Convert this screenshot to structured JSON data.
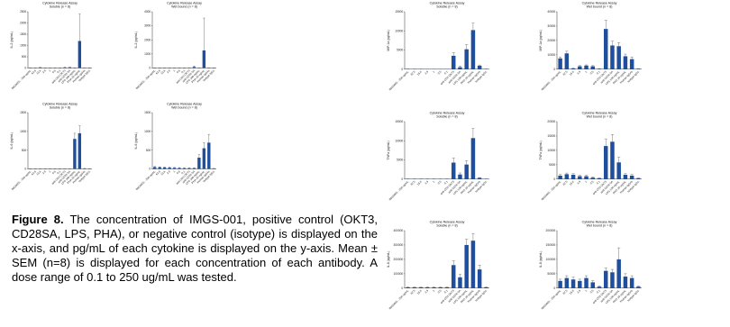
{
  "caption": {
    "label": "Figure 8.",
    "text": "The concentration of IMGS-001, positive control (OKT3, CD28SA, LPS, PHA), or negative control (isotype) is displayed on the x-axis, and pg/mL of each cytokine is displayed on the y-axis. Mean ± SEM (n=8) is displayed for each concentration of each antibody. A dose range of 0.1 to 250 ug/mL was tested."
  },
  "categories": [
    "IMGS001 - 250 ug/mL",
    "62.5",
    "15.6",
    "3.9",
    "1",
    "0.5",
    "0.1",
    "anti-CD3 OKT3",
    "anti-CD28 SA",
    "LPS 100 ng/mL",
    "PHA 10 ug/mL",
    "Human IgG4s",
    "Isotype IgG1"
  ],
  "colors": {
    "bar": "#1f4f9c",
    "axis": "#333333"
  },
  "chart_data": [
    {
      "type": "bar",
      "title": "Cytokine Release Assay",
      "subtitle": "Soluble (n = 8)",
      "ylabel": "IL-2 (pg/mL)",
      "ylim": [
        0,
        2500
      ],
      "yticks": [
        "0",
        "500",
        "1000",
        "1500",
        "2000",
        "2500"
      ],
      "values": [
        10,
        5,
        25,
        5,
        5,
        5,
        5,
        25,
        30,
        10,
        1200,
        8,
        5
      ],
      "errors": [
        5,
        5,
        10,
        5,
        5,
        5,
        5,
        15,
        15,
        5,
        1200,
        5,
        5
      ]
    },
    {
      "type": "bar",
      "title": "Cytokine Release Assay",
      "subtitle": "Wet bound (n = 8)",
      "ylabel": "IL-2 (pg/mL)",
      "ylim": [
        0,
        4000
      ],
      "yticks": [
        "0",
        "1000",
        "2000",
        "3000",
        "4000"
      ],
      "values": [
        10,
        5,
        5,
        5,
        5,
        5,
        5,
        10,
        80,
        10,
        1250,
        10,
        5
      ],
      "errors": [
        5,
        5,
        5,
        5,
        5,
        5,
        5,
        10,
        60,
        10,
        2300,
        5,
        5
      ]
    },
    {
      "type": "bar",
      "title": "Cytokine Release Assay",
      "subtitle": "Soluble (n = 8)",
      "ylabel": "IL-6 (pg/mL)",
      "ylim": [
        0,
        1500
      ],
      "yticks": [
        "0",
        "500",
        "1000",
        "1500"
      ],
      "values": [
        5,
        5,
        5,
        5,
        5,
        5,
        5,
        5,
        5,
        800,
        950,
        10,
        5
      ],
      "errors": [
        3,
        3,
        3,
        3,
        3,
        3,
        3,
        3,
        3,
        150,
        200,
        5,
        3
      ]
    },
    {
      "type": "bar",
      "title": "Cytokine Release Assay",
      "subtitle": "Wet bound (n = 8)",
      "ylabel": "IL-6 (pg/mL)",
      "ylim": [
        0,
        1500
      ],
      "yticks": [
        "0",
        "500",
        "1000",
        "1500"
      ],
      "values": [
        50,
        45,
        40,
        35,
        30,
        25,
        20,
        20,
        20,
        300,
        550,
        700,
        10
      ],
      "errors": [
        15,
        10,
        10,
        10,
        10,
        10,
        10,
        10,
        10,
        80,
        150,
        220,
        5
      ]
    },
    {
      "type": "bar",
      "title": "Cytokine Release Assay",
      "subtitle": "Soluble (n = 8)",
      "ylabel": "MIP-1a (pg/mL)",
      "ylim": [
        0,
        15000
      ],
      "yticks": [
        "0",
        "5000",
        "10000",
        "15000"
      ],
      "values": [
        50,
        40,
        30,
        20,
        20,
        20,
        20,
        3500,
        500,
        5200,
        10200,
        900,
        50
      ],
      "errors": [
        20,
        20,
        20,
        10,
        10,
        10,
        10,
        800,
        300,
        1200,
        1800,
        200,
        20
      ]
    },
    {
      "type": "bar",
      "title": "Cytokine Release Assay",
      "subtitle": "Wet bound (n = 8)",
      "ylabel": "MIP-1a (pg/mL)",
      "ylim": [
        0,
        40000
      ],
      "yticks": [
        "0",
        "10000",
        "20000",
        "30000",
        "40000"
      ],
      "values": [
        7500,
        11000,
        500,
        2000,
        2500,
        2000,
        300,
        28000,
        16500,
        16000,
        9000,
        7000,
        300
      ],
      "errors": [
        1000,
        1500,
        200,
        500,
        500,
        500,
        100,
        6000,
        3000,
        2500,
        1500,
        1500,
        100
      ]
    },
    {
      "type": "bar",
      "title": "Cytokine Release Assay",
      "subtitle": "Soluble (n = 8)",
      "ylabel": "TNFa (pg/mL)",
      "ylim": [
        0,
        15000
      ],
      "yticks": [
        "0",
        "5000",
        "10000",
        "15000"
      ],
      "values": [
        50,
        50,
        50,
        50,
        50,
        50,
        50,
        4300,
        1200,
        3800,
        10700,
        300,
        50
      ],
      "errors": [
        20,
        20,
        20,
        20,
        20,
        20,
        20,
        1200,
        400,
        1000,
        2500,
        100,
        20
      ]
    },
    {
      "type": "bar",
      "title": "Cytokine Release Assay",
      "subtitle": "Wet bound (n = 8)",
      "ylabel": "TNFa (pg/mL)",
      "ylim": [
        0,
        20000
      ],
      "yticks": [
        "0",
        "5000",
        "10000",
        "15000",
        "20000"
      ],
      "values": [
        1200,
        1700,
        1500,
        1000,
        1000,
        500,
        300,
        11500,
        13000,
        5800,
        1500,
        1200,
        300
      ],
      "errors": [
        400,
        400,
        400,
        300,
        300,
        200,
        100,
        2500,
        2500,
        1800,
        400,
        400,
        100
      ]
    },
    {
      "type": "bar",
      "title": "Cytokine Release Assay",
      "subtitle": "Soluble (n = 8)",
      "ylabel": "IL-8 (pg/mL)",
      "ylim": [
        0,
        400000
      ],
      "yticks": [
        "0",
        "100000",
        "200000",
        "300000",
        "400000"
      ],
      "values": [
        5000,
        5000,
        5000,
        5000,
        5000,
        5000,
        5000,
        160000,
        75000,
        300000,
        330000,
        130000,
        5000
      ],
      "errors": [
        2000,
        2000,
        2000,
        2000,
        2000,
        2000,
        2000,
        30000,
        20000,
        40000,
        50000,
        30000,
        2000
      ]
    },
    {
      "type": "bar",
      "title": "Cytokine Release Assay",
      "subtitle": "Wet bound (n = 8)",
      "ylabel": "IL-8 (pg/mL)",
      "ylim": [
        0,
        200000
      ],
      "yticks": [
        "0",
        "50000",
        "100000",
        "150000",
        "200000"
      ],
      "values": [
        25000,
        35000,
        30000,
        25000,
        35000,
        20000,
        5000,
        60000,
        55000,
        100000,
        40000,
        35000,
        5000
      ],
      "errors": [
        6000,
        8000,
        8000,
        6000,
        8000,
        6000,
        2000,
        10000,
        10000,
        40000,
        10000,
        8000,
        2000
      ]
    }
  ]
}
